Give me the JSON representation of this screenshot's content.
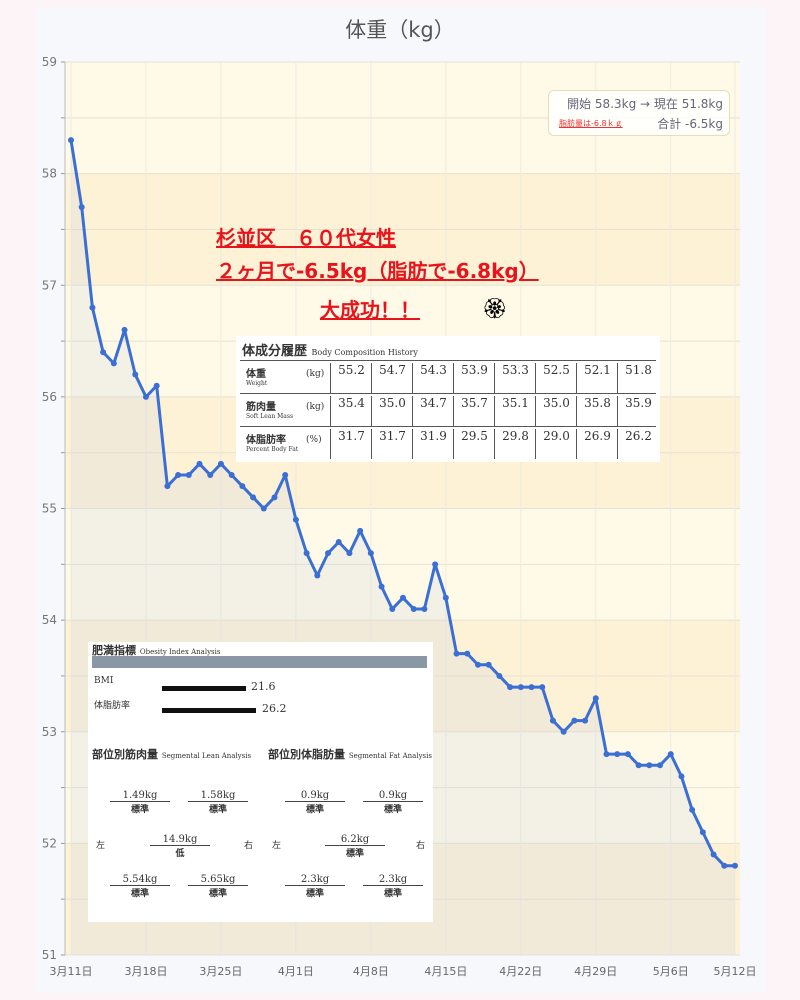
{
  "chart_data": {
    "type": "line",
    "title": "体重（kg）",
    "ylim": [
      51,
      59
    ],
    "yticks": [
      "51",
      "52",
      "53",
      "54",
      "55",
      "56",
      "57",
      "58",
      "59"
    ],
    "xticks": [
      "3月11日",
      "3月18日",
      "3月25日",
      "4月1日",
      "4月8日",
      "4月15日",
      "4月22日",
      "4月29日",
      "5月6日",
      "5月12日"
    ],
    "x": [
      "3/11",
      "3/12",
      "3/13",
      "3/14",
      "3/15",
      "3/16",
      "3/17",
      "3/18",
      "3/19",
      "3/20",
      "3/21",
      "3/22",
      "3/23",
      "3/24",
      "3/25",
      "3/26",
      "3/27",
      "3/28",
      "3/29",
      "3/30",
      "3/31",
      "4/1",
      "4/2",
      "4/3",
      "4/4",
      "4/5",
      "4/6",
      "4/7",
      "4/8",
      "4/9",
      "4/10",
      "4/11",
      "4/12",
      "4/13",
      "4/14",
      "4/15",
      "4/16",
      "4/17",
      "4/18",
      "4/19",
      "4/20",
      "4/21",
      "4/22",
      "4/23",
      "4/24",
      "4/25",
      "4/26",
      "4/27",
      "4/28",
      "4/29",
      "4/30",
      "5/1",
      "5/2",
      "5/3",
      "5/4",
      "5/5",
      "5/6",
      "5/7",
      "5/8",
      "5/9",
      "5/10",
      "5/11",
      "5/12"
    ],
    "values": [
      58.3,
      57.7,
      56.8,
      56.4,
      56.3,
      56.6,
      56.2,
      56.0,
      56.1,
      55.2,
      55.3,
      55.3,
      55.4,
      55.3,
      55.4,
      55.3,
      55.2,
      55.1,
      55.0,
      55.1,
      55.3,
      54.9,
      54.6,
      54.4,
      54.6,
      54.7,
      54.6,
      54.8,
      54.6,
      54.3,
      54.1,
      54.2,
      54.1,
      54.1,
      54.5,
      54.2,
      53.7,
      53.7,
      53.6,
      53.6,
      53.5,
      53.4,
      53.4,
      53.4,
      53.4,
      53.1,
      53.0,
      53.1,
      53.1,
      53.3,
      52.8,
      52.8,
      52.8,
      52.7,
      52.7,
      52.7,
      52.8,
      52.6,
      52.3,
      52.1,
      51.9,
      51.8,
      51.8
    ],
    "grid": true,
    "line_color": "#3b6fd4",
    "band_colors": [
      "#fffae8",
      "#fdf1d6"
    ]
  },
  "summary": {
    "line1": "開始 58.3kg → 現在 51.8kg",
    "line2": "脂肪量は-6.8ｋｇ",
    "line3": "合計 -6.5kg"
  },
  "annotation": {
    "line1": "杉並区　６０代女性",
    "line2": "２ヶ月で-6.5kg（脂肪で-6.8kg）",
    "line3": "大成功！！",
    "flower": "🏵"
  },
  "body_composition": {
    "title": "体成分履歴",
    "subtitle": "Body Composition History",
    "rows": [
      {
        "label": "体重",
        "sub": "Weight",
        "unit": "(kg)",
        "values": [
          "55.2",
          "54.7",
          "54.3",
          "53.9",
          "53.3",
          "52.5",
          "52.1",
          "51.8"
        ]
      },
      {
        "label": "筋肉量",
        "sub": "Soft Lean Mass",
        "unit": "(kg)",
        "values": [
          "35.4",
          "35.0",
          "34.7",
          "35.7",
          "35.1",
          "35.0",
          "35.8",
          "35.9"
        ]
      },
      {
        "label": "体脂肪率",
        "sub": "Percent Body Fat",
        "unit": "(%)",
        "values": [
          "31.7",
          "31.7",
          "31.9",
          "29.5",
          "29.8",
          "29.0",
          "26.9",
          "26.2"
        ]
      }
    ]
  },
  "obesity": {
    "title": "肥満指標",
    "subtitle": "Obesity Index Analysis",
    "bmi_label": "BMI",
    "bmi_value": "21.6",
    "pbf_label": "体脂肪率",
    "pbf_value": "26.2",
    "lean_title": "部位別筋肉量",
    "lean_sub": "Segmental Lean Analysis",
    "fat_title": "部位別体脂肪量",
    "fat_sub": "Segmental Fat Analysis",
    "left": "左",
    "right": "右",
    "lean": [
      {
        "v": "1.49kg",
        "s": "標準"
      },
      {
        "v": "1.58kg",
        "s": "標準"
      },
      {
        "v": "14.9kg",
        "s": "低"
      },
      {
        "v": "5.54kg",
        "s": "標準"
      },
      {
        "v": "5.65kg",
        "s": "標準"
      }
    ],
    "fat": [
      {
        "v": "0.9kg",
        "s": "標準"
      },
      {
        "v": "0.9kg",
        "s": "標準"
      },
      {
        "v": "6.2kg",
        "s": "標準"
      },
      {
        "v": "2.3kg",
        "s": "標準"
      },
      {
        "v": "2.3kg",
        "s": "標準"
      }
    ]
  }
}
